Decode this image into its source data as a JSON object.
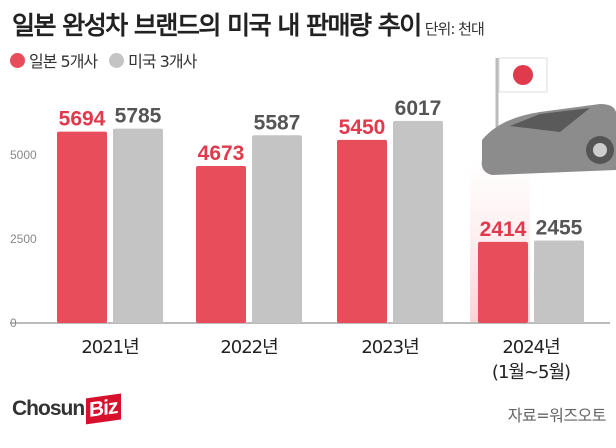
{
  "title": "일본 완성차 브랜드의 미국 내 판매량 추이",
  "unit": "단위: 천대",
  "source": "자료=워즈오토",
  "logo": {
    "text": "Chosun",
    "accent": "Biz"
  },
  "chart_data": {
    "type": "bar",
    "title": "일본 완성차 브랜드의 미국 내 판매량 추이",
    "ylabel": "단위: 천대",
    "categories": [
      "2021년",
      "2022년",
      "2023년",
      "2024년"
    ],
    "category_sublabels": [
      "",
      "",
      "",
      "(1월~5월)"
    ],
    "ylim": [
      0,
      6500
    ],
    "yticks": [
      0,
      2500,
      5000
    ],
    "grid": false,
    "legend_position": "top-left",
    "series": [
      {
        "name": "일본 5개사",
        "color": "#e84d5c",
        "label_color": "#e03a4c",
        "values": [
          5694,
          4673,
          5450,
          2414
        ]
      },
      {
        "name": "미국 3개사",
        "color": "#c4c4c4",
        "label_color": "#555555",
        "values": [
          5785,
          5587,
          6017,
          2455
        ]
      }
    ]
  }
}
